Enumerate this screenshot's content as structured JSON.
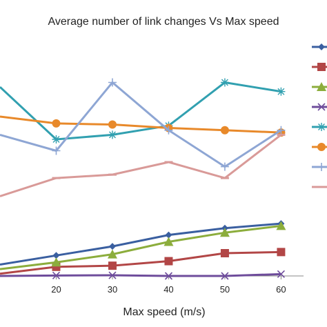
{
  "chart_data": {
    "type": "line",
    "title": "Average number  of link changes Vs Max speed",
    "xlabel": "Max speed (m/s)",
    "ylabel": "",
    "x": [
      10,
      20,
      30,
      40,
      50,
      60
    ],
    "x_ticks": [
      "20",
      "30",
      "40",
      "50",
      "60"
    ],
    "xlim": [
      10,
      64
    ],
    "ylim": [
      0,
      100
    ],
    "grid": false,
    "legend": "right",
    "series": [
      {
        "color": "#3a5fa0",
        "marker": "diamond",
        "values": [
          5.0,
          9.0,
          13.0,
          18.0,
          21.0,
          23.0
        ]
      },
      {
        "color": "#b24646",
        "marker": "square",
        "values": [
          1.0,
          4.0,
          4.5,
          6.5,
          10.0,
          10.5
        ]
      },
      {
        "color": "#8cad3c",
        "marker": "triangle",
        "values": [
          3.0,
          6.0,
          9.5,
          15.0,
          19.0,
          22.0
        ]
      },
      {
        "color": "#6e4c9b",
        "marker": "x",
        "values": [
          0.0,
          0.2,
          0.3,
          0.0,
          0.0,
          0.8
        ]
      },
      {
        "color": "#31a0b0",
        "marker": "star",
        "values": [
          83.0,
          60.0,
          62.0,
          66.0,
          85.0,
          81.0
        ]
      },
      {
        "color": "#e8892a",
        "marker": "circle",
        "values": [
          70.0,
          67.0,
          66.5,
          65.0,
          64.0,
          63.0
        ]
      },
      {
        "color": "#8ea6d4",
        "marker": "plus",
        "values": [
          62.0,
          55.0,
          85.0,
          64.0,
          48.0,
          64.0
        ]
      },
      {
        "color": "#d99a98",
        "marker": "dash",
        "values": [
          35.0,
          43.0,
          44.5,
          50.0,
          43.0,
          62.0
        ]
      }
    ]
  }
}
